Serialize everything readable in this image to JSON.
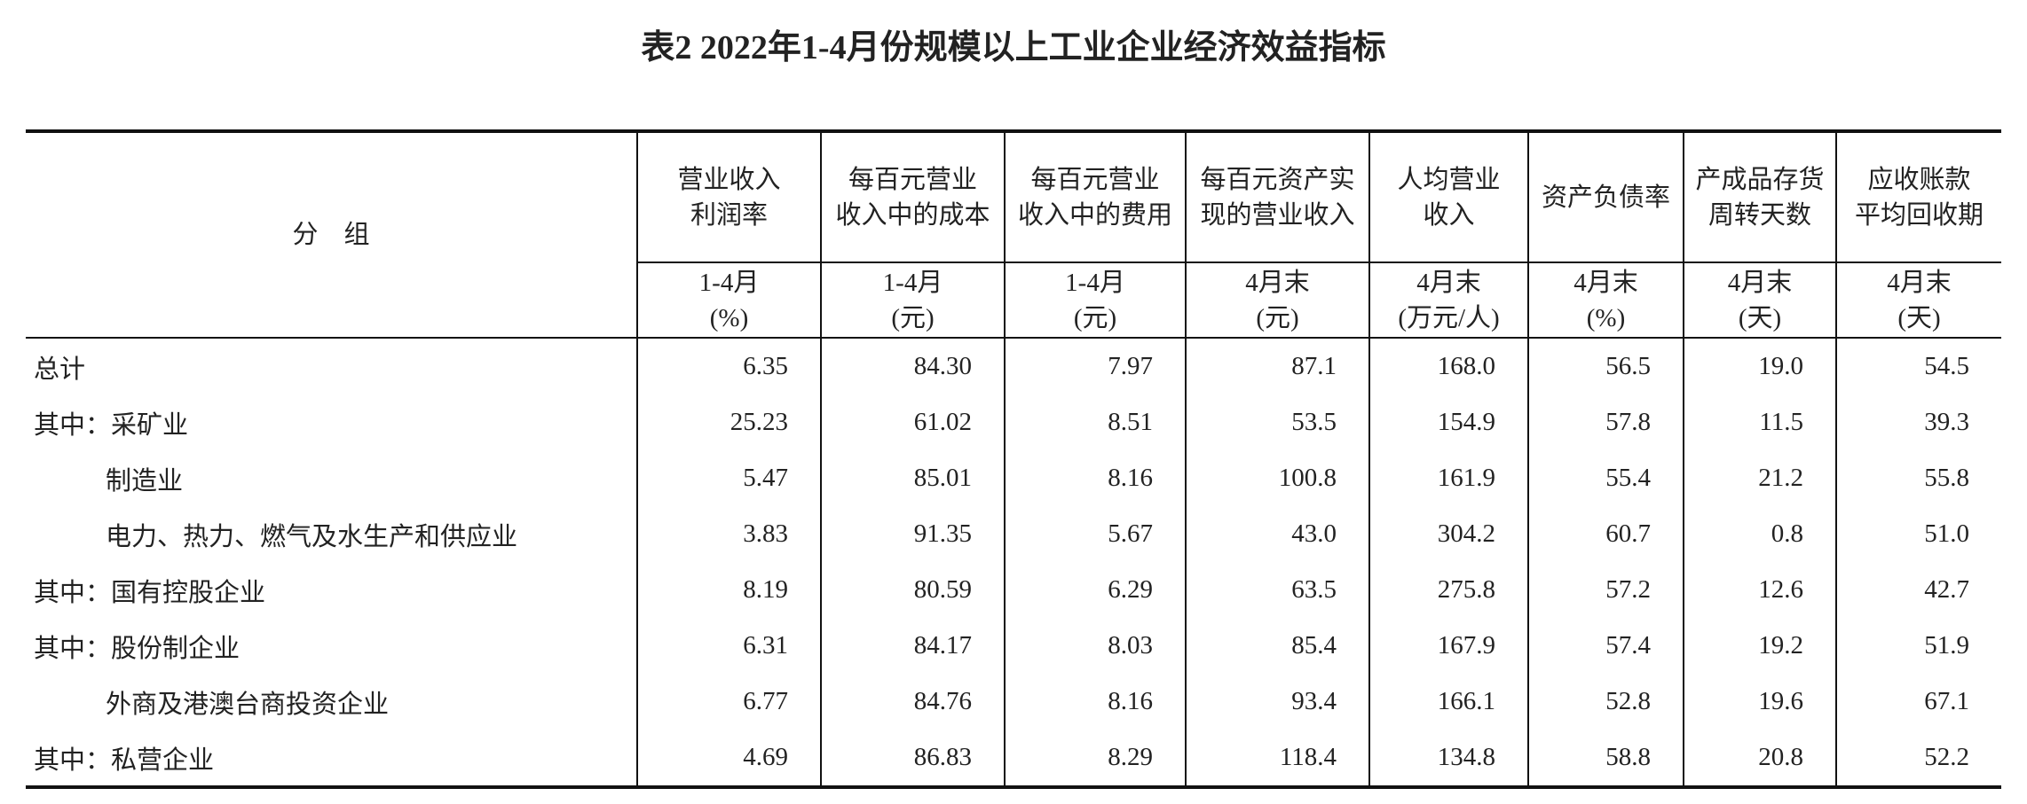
{
  "title": "表2  2022年1-4月份规模以上工业企业经济效益指标",
  "table": {
    "corner": "分　组",
    "headers": [
      [
        "营业收入",
        "利润率"
      ],
      [
        "每百元营业",
        "收入中的成本"
      ],
      [
        "每百元营业",
        "收入中的费用"
      ],
      [
        "每百元资产实",
        "现的营业收入"
      ],
      [
        "人均营业",
        "收入"
      ],
      [
        "资产负债率"
      ],
      [
        "产成品存货",
        "周转天数"
      ],
      [
        "应收账款",
        "平均回收期"
      ]
    ],
    "units": [
      [
        "1-4月",
        "(%)"
      ],
      [
        "1-4月",
        "(元)"
      ],
      [
        "1-4月",
        "(元)"
      ],
      [
        "4月末",
        "(元)"
      ],
      [
        "4月末",
        "(万元/人)"
      ],
      [
        "4月末",
        "(%)"
      ],
      [
        "4月末",
        "(天)"
      ],
      [
        "4月末",
        "(天)"
      ]
    ],
    "rows": [
      [
        "总计",
        "6.35",
        "84.30",
        "7.97",
        "87.1",
        "168.0",
        "56.5",
        "19.0",
        "54.5"
      ],
      [
        "其中：采矿业",
        "25.23",
        "61.02",
        "8.51",
        "53.5",
        "154.9",
        "57.8",
        "11.5",
        "39.3"
      ],
      [
        "制造业",
        "5.47",
        "85.01",
        "8.16",
        "100.8",
        "161.9",
        "55.4",
        "21.2",
        "55.8"
      ],
      [
        "电力、热力、燃气及水生产和供应业",
        "3.83",
        "91.35",
        "5.67",
        "43.0",
        "304.2",
        "60.7",
        "0.8",
        "51.0"
      ],
      [
        "其中：国有控股企业",
        "8.19",
        "80.59",
        "6.29",
        "63.5",
        "275.8",
        "57.2",
        "12.6",
        "42.7"
      ],
      [
        "其中：股份制企业",
        "6.31",
        "84.17",
        "8.03",
        "85.4",
        "167.9",
        "57.4",
        "19.2",
        "51.9"
      ],
      [
        "外商及港澳台商投资企业",
        "6.77",
        "84.76",
        "8.16",
        "93.4",
        "166.1",
        "52.8",
        "19.6",
        "67.1"
      ],
      [
        "其中：私营企业",
        "4.69",
        "86.83",
        "8.29",
        "118.4",
        "134.8",
        "58.8",
        "20.8",
        "52.2"
      ]
    ]
  }
}
